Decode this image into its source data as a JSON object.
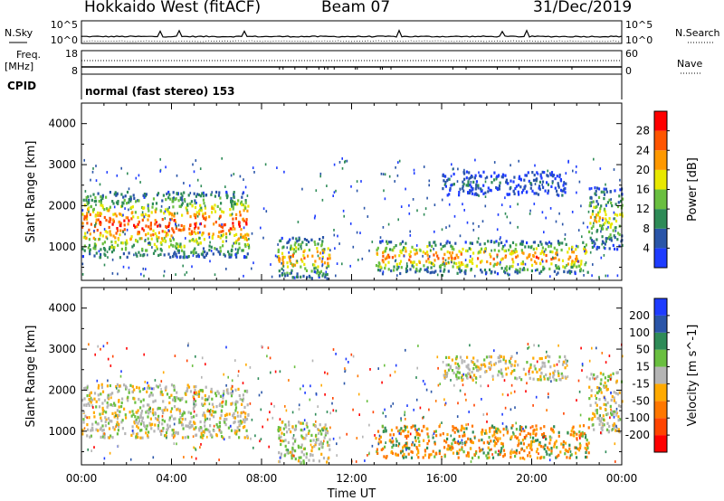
{
  "header": {
    "radar": "Hokkaido West (fitACF)",
    "beam": "Beam 07",
    "date": "31/Dec/2019"
  },
  "aux_labels": {
    "nsky": "N.Sky",
    "nsearch": "N.Search",
    "freq": "Freq.",
    "freq_unit": "[MHz]",
    "nave": "Nave",
    "cpid": "CPID",
    "cpid_value": "normal (fast stereo) 153",
    "noise_ticks": [
      "10^5",
      "10^0"
    ],
    "freq_ticks": [
      "18",
      "8"
    ],
    "nave_ticks": [
      "60",
      "0"
    ]
  },
  "colors": {
    "power_scale": [
      "#1e3cff",
      "#2a55a8",
      "#2e8b57",
      "#6abf40",
      "#e8e800",
      "#ff9900",
      "#ff5500",
      "#ff0000"
    ],
    "velocity_scale": [
      "#1e3cff",
      "#2a55a8",
      "#2e8b57",
      "#6abf40",
      "#b5b5b5",
      "#ffaa00",
      "#ff7700",
      "#ff4400",
      "#ff0000"
    ]
  },
  "chart_data": [
    {
      "type": "heatmap",
      "title": "",
      "xlabel": "Time UT",
      "ylabel": "Slant Range [km]",
      "xlim": [
        "00:00",
        "00:00"
      ],
      "ylim": [
        180,
        4500
      ],
      "x_ticks": [
        "00:00",
        "04:00",
        "08:00",
        "12:00",
        "16:00",
        "20:00",
        "00:00"
      ],
      "y_ticks": [
        1000,
        2000,
        3000,
        4000
      ],
      "colorbar": {
        "label": "Power [dB]",
        "ticks": [
          "4",
          "8",
          "12",
          "16",
          "20",
          "24",
          "28"
        ],
        "range": [
          0,
          30
        ]
      },
      "regions": [
        {
          "t0": 0.0,
          "t1": 7.4,
          "r0": 700,
          "r1": 2300,
          "peak": 26
        },
        {
          "t0": 8.7,
          "t1": 11.0,
          "r0": 180,
          "r1": 1200,
          "peak": 22
        },
        {
          "t0": 13.0,
          "t1": 22.5,
          "r0": 300,
          "r1": 1100,
          "peak": 24
        },
        {
          "t0": 16.0,
          "t1": 21.5,
          "r0": 2200,
          "r1": 2800,
          "peak": 6
        },
        {
          "t0": 22.5,
          "t1": 24.0,
          "r0": 900,
          "r1": 2400,
          "peak": 18
        }
      ]
    },
    {
      "type": "heatmap",
      "title": "",
      "xlabel": "Time UT",
      "ylabel": "Slant Range [km]",
      "xlim": [
        "00:00",
        "00:00"
      ],
      "ylim": [
        180,
        4500
      ],
      "x_ticks": [
        "00:00",
        "04:00",
        "08:00",
        "12:00",
        "16:00",
        "20:00",
        "00:00"
      ],
      "y_ticks": [
        1000,
        2000,
        3000,
        4000
      ],
      "colorbar": {
        "label": "Velocity [m s^-1]",
        "ticks": [
          "200",
          "100",
          "50",
          "15",
          "-15",
          "-50",
          "-100",
          "-200"
        ],
        "range": [
          -250,
          250
        ]
      },
      "regions": [
        {
          "t0": 0.0,
          "t1": 7.4,
          "r0": 800,
          "r1": 2100,
          "v": 0
        },
        {
          "t0": 8.7,
          "t1": 11.0,
          "r0": 180,
          "r1": 1200,
          "v": 5
        },
        {
          "t0": 13.0,
          "t1": 22.5,
          "r0": 300,
          "r1": 1100,
          "v": -60
        },
        {
          "t0": 16.0,
          "t1": 21.5,
          "r0": 2200,
          "r1": 2800,
          "v": 0
        },
        {
          "t0": 22.5,
          "t1": 24.0,
          "r0": 900,
          "r1": 2400,
          "v": 0
        }
      ]
    }
  ]
}
